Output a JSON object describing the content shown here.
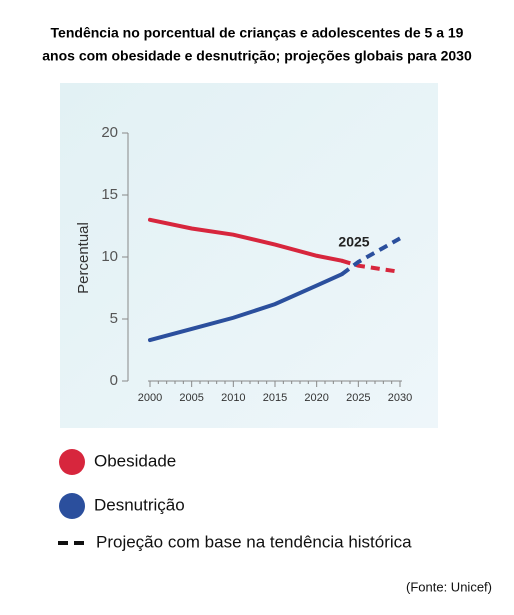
{
  "chart_data": {
    "type": "line",
    "title": [
      "Tendência no porcentual de crianças e adolescentes de 5 a 19",
      "anos com obesidade e desnutrição; projeções globais para 2030"
    ],
    "y_label": "Percentual",
    "annotation": "2025",
    "x": [
      2000,
      2005,
      2010,
      2015,
      2020,
      2023,
      2025,
      2030
    ],
    "series": [
      {
        "name": "Obesidade",
        "color": "#d7263d",
        "values": [
          13.0,
          12.3,
          11.8,
          11.0,
          10.1,
          9.7,
          null,
          null
        ],
        "projection_values": [
          null,
          null,
          null,
          null,
          null,
          9.7,
          9.3,
          8.8
        ]
      },
      {
        "name": "Desnutrição",
        "color": "#2b4f9d",
        "values": [
          3.3,
          4.2,
          5.1,
          6.2,
          7.7,
          8.6,
          null,
          null
        ],
        "projection_values": [
          null,
          null,
          null,
          null,
          null,
          8.6,
          9.6,
          11.5
        ]
      }
    ],
    "projection_label": "Projeção com base na tendência histórica",
    "xlim": [
      2000,
      2030
    ],
    "xticks": [
      2000,
      2005,
      2010,
      2015,
      2020,
      2025,
      2030
    ],
    "ylim": [
      0,
      20
    ],
    "yticks": [
      0,
      5,
      10,
      15,
      20
    ],
    "source": "(Fonte: Unicef)"
  }
}
